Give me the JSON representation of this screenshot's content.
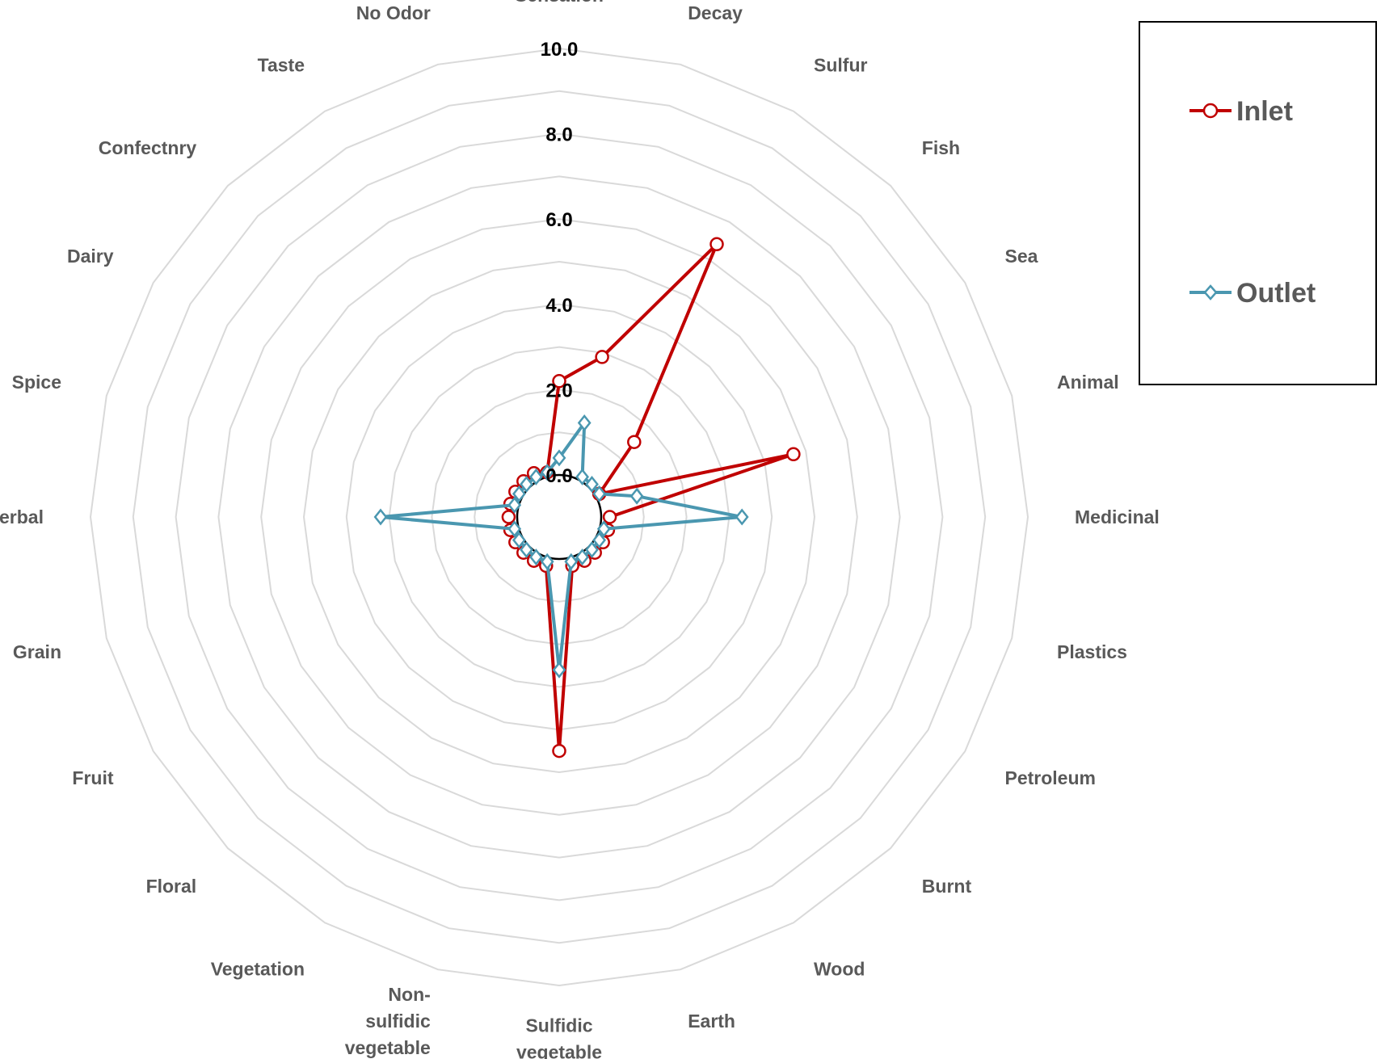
{
  "chart_data": {
    "type": "radar",
    "title": "",
    "categories": [
      "Sensation",
      "Decay",
      "Sulfur",
      "Fish",
      "Sea",
      "Animal",
      "Medicinal",
      "Plastics",
      "Petroleum",
      "Burnt",
      "Wood",
      "Earth",
      "Sulfidic vegetable",
      "Non-sulfidic vegetable",
      "Vegetation",
      "Floral",
      "Fruit",
      "Grain",
      "Herbal",
      "Spice",
      "Dairy",
      "Confectnry",
      "Taste",
      "No Odor"
    ],
    "ticks": [
      "0.0",
      "2.0",
      "4.0",
      "6.0",
      "8.0",
      "10.0"
    ],
    "rlim": [
      0,
      10
    ],
    "major_step": 2,
    "minor_step": 1,
    "grid": true,
    "legend_position": "top-right",
    "colors": {
      "inlet": "#c00000",
      "outlet": "#4a97b0",
      "grid": "#d9d9d9",
      "axis": "#000000"
    },
    "series": [
      {
        "name": "Inlet",
        "marker": "circle",
        "values": [
          2.2,
          2.9,
          6.4,
          1.5,
          0.1,
          4.7,
          0.2,
          0.2,
          0.2,
          0.2,
          0.2,
          0.2,
          4.5,
          0.2,
          0.2,
          0.2,
          0.2,
          0.2,
          0.2,
          0.2,
          0.2,
          0.2,
          0.2,
          0.1
        ]
      },
      {
        "name": "Outlet",
        "marker": "diamond",
        "values": [
          0.4,
          1.3,
          0.1,
          0.1,
          0.1,
          0.9,
          3.3,
          0.1,
          0.1,
          0.1,
          0.1,
          0.1,
          2.6,
          0.1,
          0.1,
          0.1,
          0.1,
          0.1,
          3.2,
          0.1,
          0.1,
          0.1,
          0.1,
          0.1
        ]
      }
    ]
  }
}
